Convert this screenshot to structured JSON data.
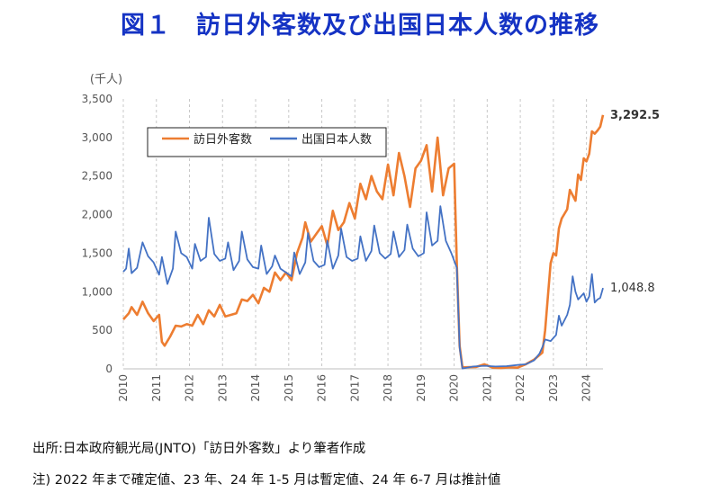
{
  "title": "図１　訪日外客数及び出国日本人数の推移",
  "source_note": "出所:日本政府観光局(JNTO)「訪日外客数」より筆者作成",
  "footnote": "注) 2022 年まで確定値、23 年、24 年 1-5 月は暫定値、24 年 6-7 月は推計値",
  "chart_data": {
    "type": "line",
    "title": "",
    "ylabel": "(千人)",
    "xlabel": "",
    "ylim": [
      0,
      3500
    ],
    "yticks": [
      0,
      500,
      1000,
      1500,
      2000,
      2500,
      3000,
      3500
    ],
    "ytick_labels": [
      "0",
      "500",
      "1,000",
      "1,500",
      "2,000",
      "2,500",
      "3,000",
      "3,500"
    ],
    "x_start": "2010-01",
    "x_end": "2024-07",
    "xtick_labels": [
      "2010",
      "2011",
      "2012",
      "2013",
      "2014",
      "2015",
      "2016",
      "2017",
      "2018",
      "2019",
      "2020",
      "2021",
      "2022",
      "2023",
      "2024"
    ],
    "grid": "vertical-dashed",
    "legend_position": "top-left",
    "series": [
      {
        "name": "訪日外客数",
        "color": "#ed7d31",
        "end_label": "3,292.5",
        "values": [
          {
            "x": "2010-01",
            "y": 640
          },
          {
            "x": "2010-03",
            "y": 720
          },
          {
            "x": "2010-04",
            "y": 800
          },
          {
            "x": "2010-06",
            "y": 700
          },
          {
            "x": "2010-08",
            "y": 870
          },
          {
            "x": "2010-10",
            "y": 720
          },
          {
            "x": "2010-12",
            "y": 620
          },
          {
            "x": "2011-02",
            "y": 700
          },
          {
            "x": "2011-03",
            "y": 350
          },
          {
            "x": "2011-04",
            "y": 300
          },
          {
            "x": "2011-06",
            "y": 420
          },
          {
            "x": "2011-08",
            "y": 560
          },
          {
            "x": "2011-10",
            "y": 550
          },
          {
            "x": "2011-12",
            "y": 580
          },
          {
            "x": "2012-02",
            "y": 560
          },
          {
            "x": "2012-04",
            "y": 700
          },
          {
            "x": "2012-06",
            "y": 580
          },
          {
            "x": "2012-08",
            "y": 760
          },
          {
            "x": "2012-10",
            "y": 680
          },
          {
            "x": "2012-12",
            "y": 830
          },
          {
            "x": "2013-02",
            "y": 680
          },
          {
            "x": "2013-04",
            "y": 700
          },
          {
            "x": "2013-06",
            "y": 720
          },
          {
            "x": "2013-08",
            "y": 900
          },
          {
            "x": "2013-10",
            "y": 880
          },
          {
            "x": "2013-12",
            "y": 960
          },
          {
            "x": "2014-02",
            "y": 850
          },
          {
            "x": "2014-04",
            "y": 1050
          },
          {
            "x": "2014-06",
            "y": 1000
          },
          {
            "x": "2014-08",
            "y": 1250
          },
          {
            "x": "2014-10",
            "y": 1150
          },
          {
            "x": "2014-12",
            "y": 1250
          },
          {
            "x": "2015-02",
            "y": 1150
          },
          {
            "x": "2015-04",
            "y": 1500
          },
          {
            "x": "2015-06",
            "y": 1700
          },
          {
            "x": "2015-07",
            "y": 1900
          },
          {
            "x": "2015-09",
            "y": 1650
          },
          {
            "x": "2015-11",
            "y": 1750
          },
          {
            "x": "2016-01",
            "y": 1850
          },
          {
            "x": "2016-03",
            "y": 1600
          },
          {
            "x": "2016-05",
            "y": 2050
          },
          {
            "x": "2016-07",
            "y": 1800
          },
          {
            "x": "2016-09",
            "y": 1900
          },
          {
            "x": "2016-11",
            "y": 2150
          },
          {
            "x": "2017-01",
            "y": 1950
          },
          {
            "x": "2017-03",
            "y": 2400
          },
          {
            "x": "2017-05",
            "y": 2200
          },
          {
            "x": "2017-07",
            "y": 2500
          },
          {
            "x": "2017-09",
            "y": 2300
          },
          {
            "x": "2017-11",
            "y": 2200
          },
          {
            "x": "2018-01",
            "y": 2650
          },
          {
            "x": "2018-03",
            "y": 2250
          },
          {
            "x": "2018-05",
            "y": 2800
          },
          {
            "x": "2018-07",
            "y": 2500
          },
          {
            "x": "2018-09",
            "y": 2100
          },
          {
            "x": "2018-11",
            "y": 2600
          },
          {
            "x": "2019-01",
            "y": 2700
          },
          {
            "x": "2019-03",
            "y": 2900
          },
          {
            "x": "2019-05",
            "y": 2300
          },
          {
            "x": "2019-07",
            "y": 3000
          },
          {
            "x": "2019-09",
            "y": 2250
          },
          {
            "x": "2019-11",
            "y": 2600
          },
          {
            "x": "2020-01",
            "y": 2660
          },
          {
            "x": "2020-02",
            "y": 1350
          },
          {
            "x": "2020-03",
            "y": 300
          },
          {
            "x": "2020-04",
            "y": 20
          },
          {
            "x": "2020-09",
            "y": 25
          },
          {
            "x": "2020-12",
            "y": 60
          },
          {
            "x": "2021-03",
            "y": 15
          },
          {
            "x": "2021-06",
            "y": 10
          },
          {
            "x": "2021-09",
            "y": 20
          },
          {
            "x": "2021-12",
            "y": 15
          },
          {
            "x": "2022-03",
            "y": 60
          },
          {
            "x": "2022-06",
            "y": 120
          },
          {
            "x": "2022-09",
            "y": 210
          },
          {
            "x": "2022-10",
            "y": 500
          },
          {
            "x": "2022-11",
            "y": 930
          },
          {
            "x": "2022-12",
            "y": 1370
          },
          {
            "x": "2023-01",
            "y": 1500
          },
          {
            "x": "2023-02",
            "y": 1470
          },
          {
            "x": "2023-03",
            "y": 1820
          },
          {
            "x": "2023-04",
            "y": 1950
          },
          {
            "x": "2023-06",
            "y": 2070
          },
          {
            "x": "2023-07",
            "y": 2320
          },
          {
            "x": "2023-09",
            "y": 2180
          },
          {
            "x": "2023-10",
            "y": 2520
          },
          {
            "x": "2023-11",
            "y": 2450
          },
          {
            "x": "2023-12",
            "y": 2730
          },
          {
            "x": "2024-01",
            "y": 2690
          },
          {
            "x": "2024-02",
            "y": 2790
          },
          {
            "x": "2024-03",
            "y": 3080
          },
          {
            "x": "2024-04",
            "y": 3050
          },
          {
            "x": "2024-05",
            "y": 3090
          },
          {
            "x": "2024-06",
            "y": 3140
          },
          {
            "x": "2024-07",
            "y": 3292.5
          }
        ]
      },
      {
        "name": "出国日本人数",
        "color": "#4472c4",
        "end_label": "1,048.8",
        "values": [
          {
            "x": "2010-01",
            "y": 1260
          },
          {
            "x": "2010-02",
            "y": 1300
          },
          {
            "x": "2010-03",
            "y": 1560
          },
          {
            "x": "2010-04",
            "y": 1240
          },
          {
            "x": "2010-06",
            "y": 1310
          },
          {
            "x": "2010-08",
            "y": 1640
          },
          {
            "x": "2010-10",
            "y": 1460
          },
          {
            "x": "2010-12",
            "y": 1380
          },
          {
            "x": "2011-02",
            "y": 1220
          },
          {
            "x": "2011-03",
            "y": 1450
          },
          {
            "x": "2011-05",
            "y": 1100
          },
          {
            "x": "2011-07",
            "y": 1300
          },
          {
            "x": "2011-08",
            "y": 1780
          },
          {
            "x": "2011-10",
            "y": 1500
          },
          {
            "x": "2011-12",
            "y": 1450
          },
          {
            "x": "2012-02",
            "y": 1300
          },
          {
            "x": "2012-03",
            "y": 1620
          },
          {
            "x": "2012-05",
            "y": 1400
          },
          {
            "x": "2012-07",
            "y": 1450
          },
          {
            "x": "2012-08",
            "y": 1960
          },
          {
            "x": "2012-10",
            "y": 1490
          },
          {
            "x": "2012-12",
            "y": 1400
          },
          {
            "x": "2013-02",
            "y": 1430
          },
          {
            "x": "2013-03",
            "y": 1640
          },
          {
            "x": "2013-05",
            "y": 1280
          },
          {
            "x": "2013-07",
            "y": 1400
          },
          {
            "x": "2013-08",
            "y": 1780
          },
          {
            "x": "2013-10",
            "y": 1420
          },
          {
            "x": "2013-12",
            "y": 1320
          },
          {
            "x": "2014-02",
            "y": 1300
          },
          {
            "x": "2014-03",
            "y": 1600
          },
          {
            "x": "2014-05",
            "y": 1230
          },
          {
            "x": "2014-07",
            "y": 1330
          },
          {
            "x": "2014-08",
            "y": 1470
          },
          {
            "x": "2014-10",
            "y": 1300
          },
          {
            "x": "2014-12",
            "y": 1250
          },
          {
            "x": "2015-02",
            "y": 1200
          },
          {
            "x": "2015-03",
            "y": 1510
          },
          {
            "x": "2015-05",
            "y": 1230
          },
          {
            "x": "2015-07",
            "y": 1380
          },
          {
            "x": "2015-08",
            "y": 1760
          },
          {
            "x": "2015-10",
            "y": 1400
          },
          {
            "x": "2015-12",
            "y": 1320
          },
          {
            "x": "2016-02",
            "y": 1350
          },
          {
            "x": "2016-03",
            "y": 1660
          },
          {
            "x": "2016-05",
            "y": 1300
          },
          {
            "x": "2016-07",
            "y": 1470
          },
          {
            "x": "2016-08",
            "y": 1820
          },
          {
            "x": "2016-10",
            "y": 1450
          },
          {
            "x": "2016-12",
            "y": 1400
          },
          {
            "x": "2017-02",
            "y": 1430
          },
          {
            "x": "2017-03",
            "y": 1720
          },
          {
            "x": "2017-05",
            "y": 1400
          },
          {
            "x": "2017-07",
            "y": 1530
          },
          {
            "x": "2017-08",
            "y": 1860
          },
          {
            "x": "2017-10",
            "y": 1500
          },
          {
            "x": "2017-12",
            "y": 1430
          },
          {
            "x": "2018-02",
            "y": 1490
          },
          {
            "x": "2018-03",
            "y": 1780
          },
          {
            "x": "2018-05",
            "y": 1450
          },
          {
            "x": "2018-07",
            "y": 1540
          },
          {
            "x": "2018-08",
            "y": 1870
          },
          {
            "x": "2018-10",
            "y": 1560
          },
          {
            "x": "2018-12",
            "y": 1460
          },
          {
            "x": "2019-02",
            "y": 1500
          },
          {
            "x": "2019-03",
            "y": 2030
          },
          {
            "x": "2019-05",
            "y": 1600
          },
          {
            "x": "2019-07",
            "y": 1660
          },
          {
            "x": "2019-08",
            "y": 2110
          },
          {
            "x": "2019-10",
            "y": 1660
          },
          {
            "x": "2019-12",
            "y": 1500
          },
          {
            "x": "2020-02",
            "y": 1310
          },
          {
            "x": "2020-03",
            "y": 280
          },
          {
            "x": "2020-04",
            "y": 5
          },
          {
            "x": "2020-08",
            "y": 30
          },
          {
            "x": "2020-12",
            "y": 40
          },
          {
            "x": "2021-04",
            "y": 30
          },
          {
            "x": "2021-08",
            "y": 35
          },
          {
            "x": "2021-12",
            "y": 50
          },
          {
            "x": "2022-03",
            "y": 60
          },
          {
            "x": "2022-06",
            "y": 110
          },
          {
            "x": "2022-08",
            "y": 200
          },
          {
            "x": "2022-09",
            "y": 280
          },
          {
            "x": "2022-10",
            "y": 380
          },
          {
            "x": "2022-12",
            "y": 360
          },
          {
            "x": "2023-02",
            "y": 440
          },
          {
            "x": "2023-03",
            "y": 690
          },
          {
            "x": "2023-04",
            "y": 560
          },
          {
            "x": "2023-06",
            "y": 700
          },
          {
            "x": "2023-07",
            "y": 830
          },
          {
            "x": "2023-08",
            "y": 1200
          },
          {
            "x": "2023-09",
            "y": 1000
          },
          {
            "x": "2023-10",
            "y": 900
          },
          {
            "x": "2023-12",
            "y": 980
          },
          {
            "x": "2024-01",
            "y": 870
          },
          {
            "x": "2024-02",
            "y": 940
          },
          {
            "x": "2024-03",
            "y": 1230
          },
          {
            "x": "2024-04",
            "y": 860
          },
          {
            "x": "2024-05",
            "y": 900
          },
          {
            "x": "2024-06",
            "y": 920
          },
          {
            "x": "2024-07",
            "y": 1048.8
          }
        ]
      }
    ]
  }
}
